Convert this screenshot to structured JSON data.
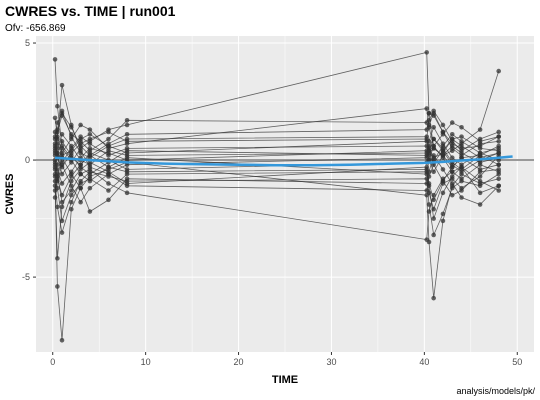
{
  "chart_data": {
    "type": "line",
    "title": "CWRES vs. TIME | run001",
    "subtitle": "Ofv: -656.869",
    "xlabel": "TIME",
    "ylabel": "CWRES",
    "caption": "analysis/models/pk/",
    "xlim": [
      -1.8,
      51.8
    ],
    "ylim": [
      -8.2,
      5.3
    ],
    "x_ticks": [
      0,
      10,
      20,
      30,
      40,
      50
    ],
    "y_ticks": [
      -5,
      0,
      5
    ],
    "reference_line": 0,
    "grid": true,
    "colors": {
      "panel": "#ebebeb",
      "grid": "#ffffff",
      "points": "#333333",
      "smooth": "#3498db",
      "reference": "#999999"
    },
    "times": [
      0.25,
      0.5,
      1,
      2,
      3,
      4,
      6,
      8,
      40.25,
      40.5,
      41,
      42,
      43,
      44,
      46,
      48
    ],
    "subjects": [
      [
        0.5,
        1.2,
        1.9,
        1.1,
        0.8,
        0.4,
        0.9,
        1.7,
        1.6,
        2.0,
        1.9,
        1.2,
        0.7,
        0.5,
        0.6,
        1.0
      ],
      [
        -0.4,
        -1.2,
        -2.6,
        -1.5,
        -1.0,
        -0.8,
        -1.3,
        -0.6,
        -0.5,
        -1.4,
        -2.1,
        -1.0,
        -0.8,
        -1.2,
        -0.7,
        0.2
      ],
      [
        1.2,
        0.7,
        0.2,
        0.4,
        0.9,
        1.1,
        0.6,
        0.3,
        0.8,
        0.5,
        0.1,
        0.3,
        0.9,
        1.0,
        0.5,
        0.4
      ],
      [
        -0.2,
        0.3,
        0.8,
        0.2,
        -0.3,
        -0.6,
        -0.1,
        0.4,
        0.2,
        0.6,
        0.9,
        0.4,
        -0.2,
        -0.5,
        0.0,
        0.3
      ],
      [
        4.3,
        2.3,
        0.6,
        0.1,
        -0.2,
        0.3,
        0.0,
        -0.4,
        -0.1,
        0.3,
        0.5,
        0.2,
        -0.3,
        0.1,
        0.2,
        -0.2
      ],
      [
        0.9,
        1.6,
        2.0,
        1.4,
        0.6,
        0.2,
        0.7,
        1.1,
        1.3,
        1.7,
        2.1,
        1.5,
        0.8,
        0.4,
        0.9,
        1.2
      ],
      [
        -0.9,
        -2.0,
        -3.1,
        -1.8,
        -0.9,
        -0.5,
        -0.7,
        -0.9,
        -0.8,
        -1.9,
        -3.2,
        -2.3,
        -1.2,
        -0.9,
        -1.1,
        -0.6
      ],
      [
        0.0,
        -0.4,
        -1.0,
        -0.5,
        0.1,
        0.5,
        0.3,
        0.0,
        0.4,
        0.0,
        -0.5,
        0.2,
        0.6,
        0.3,
        -0.1,
        0.1
      ],
      [
        0.3,
        0.9,
        3.2,
        1.5,
        0.4,
        -0.3,
        -0.6,
        -0.2,
        0.1,
        0.4,
        0.9,
        0.5,
        -0.1,
        -0.4,
        0.2,
        0.6
      ],
      [
        -1.1,
        -4.2,
        -2.0,
        -0.9,
        -0.4,
        -0.1,
        -0.5,
        -1.0,
        -0.3,
        -1.1,
        -2.5,
        -1.4,
        -0.7,
        -0.3,
        -0.9,
        -1.3
      ],
      [
        0.6,
        0.1,
        -0.3,
        0.3,
        0.7,
        0.9,
        1.2,
        0.8,
        0.9,
        0.4,
        0.0,
        0.6,
        1.1,
        0.8,
        0.3,
        0.5
      ],
      [
        -0.6,
        -5.4,
        -7.7,
        -2.1,
        -1.2,
        -0.7,
        -0.4,
        -0.1,
        -1.5,
        -3.5,
        -5.9,
        -2.6,
        -1.1,
        -0.6,
        -1.0,
        -0.8
      ],
      [
        1.8,
        1.0,
        0.3,
        0.9,
        1.5,
        1.3,
        0.5,
        0.7,
        2.2,
        1.4,
        0.6,
        1.1,
        1.6,
        1.4,
        0.8,
        1.0
      ],
      [
        -1.6,
        -0.9,
        -0.2,
        -1.1,
        -1.8,
        -1.2,
        -0.6,
        -1.1,
        -1.3,
        -0.7,
        -0.2,
        -0.9,
        -1.5,
        -1.3,
        -0.5,
        -0.4
      ],
      [
        0.2,
        0.5,
        1.1,
        0.6,
        0.0,
        -0.2,
        0.4,
        0.2,
        0.3,
        0.8,
        1.4,
        0.7,
        0.1,
        -0.2,
        0.3,
        0.0
      ],
      [
        -0.3,
        -0.8,
        -1.5,
        -0.7,
        -0.2,
        0.2,
        -0.3,
        -0.5,
        -0.4,
        -1.0,
        -1.7,
        -0.9,
        -0.3,
        0.1,
        -0.4,
        -0.2
      ],
      [
        1.0,
        0.2,
        -0.6,
        -0.1,
        0.5,
        0.8,
        1.3,
        1.5,
        4.6,
        2.0,
        0.5,
        0.2,
        0.4,
        0.7,
        1.3,
        3.8
      ],
      [
        -0.7,
        -0.2,
        0.5,
        0.0,
        -0.6,
        -0.9,
        -0.3,
        0.1,
        -0.6,
        0.0,
        0.6,
        0.1,
        -0.5,
        -0.8,
        -0.2,
        -0.5
      ],
      [
        0.4,
        1.3,
        2.1,
        1.0,
        0.3,
        0.1,
        0.6,
        0.9,
        1.0,
        1.5,
        2.0,
        1.2,
        0.5,
        0.2,
        0.7,
        0.8
      ],
      [
        -0.1,
        -0.6,
        -1.8,
        -1.3,
        -0.6,
        -0.4,
        -1.0,
        -1.4,
        -3.4,
        -2.2,
        -1.5,
        -0.8,
        -0.5,
        -0.3,
        -1.4,
        -1.1
      ],
      [
        0.7,
        0.3,
        -0.1,
        0.5,
        1.0,
        0.7,
        0.2,
        0.5,
        0.6,
        0.2,
        -0.1,
        0.4,
        0.9,
        0.6,
        0.1,
        0.3
      ],
      [
        -1.3,
        -0.7,
        0.1,
        -0.6,
        -1.2,
        -2.2,
        -1.7,
        -0.8,
        -1.0,
        -0.5,
        0.2,
        -0.4,
        -1.0,
        -1.6,
        -1.9,
        -1.1
      ]
    ],
    "smooth": {
      "x": [
        0.25,
        2,
        4,
        6,
        8,
        12,
        16,
        20,
        24,
        28,
        32,
        36,
        40,
        41,
        42,
        44,
        46,
        48,
        49.5
      ],
      "y": [
        0.1,
        0.05,
        0.0,
        -0.05,
        -0.1,
        -0.15,
        -0.18,
        -0.2,
        -0.22,
        -0.22,
        -0.2,
        -0.16,
        -0.12,
        -0.1,
        -0.08,
        -0.02,
        0.03,
        0.1,
        0.15
      ]
    }
  }
}
